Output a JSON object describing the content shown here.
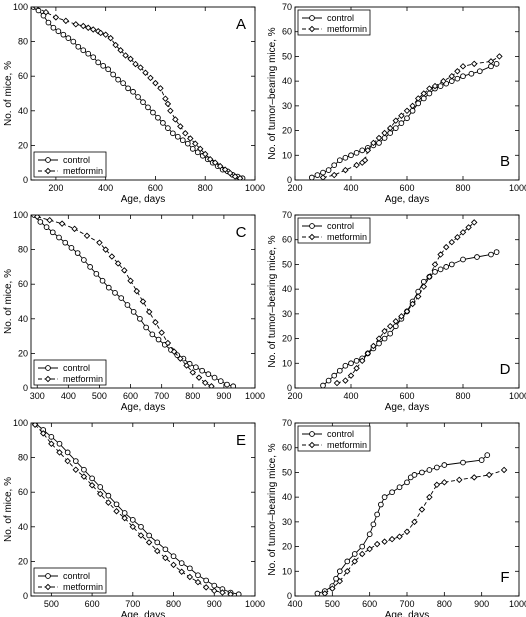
{
  "chart_data": [
    {
      "type": "line",
      "panel_label": "A",
      "xlabel": "Age, days",
      "ylabel": "No. of mice, %",
      "xlim": [
        100,
        1000
      ],
      "ylim": [
        0,
        100
      ],
      "xticks": [
        200,
        400,
        600,
        800,
        1000
      ],
      "yticks": [
        0,
        20,
        40,
        60,
        80,
        100
      ],
      "legend_position": "bottom-left",
      "series": [
        {
          "name": "control",
          "style": "solid",
          "marker": "circle",
          "x": [
            110,
            130,
            150,
            170,
            190,
            210,
            230,
            250,
            270,
            290,
            310,
            330,
            350,
            370,
            390,
            410,
            430,
            450,
            470,
            490,
            510,
            530,
            550,
            570,
            590,
            610,
            630,
            650,
            670,
            690,
            710,
            730,
            750,
            770,
            790,
            810,
            830,
            850,
            870,
            890,
            910,
            930,
            950
          ],
          "y": [
            100,
            98,
            95,
            91,
            88,
            86,
            84,
            82,
            80,
            77,
            75,
            73,
            71,
            68,
            66,
            64,
            61,
            58,
            56,
            53,
            51,
            48,
            45,
            42,
            39,
            36,
            33,
            30,
            27,
            25,
            23,
            21,
            18,
            16,
            14,
            12,
            10,
            8,
            6,
            5,
            3,
            2,
            1
          ]
        },
        {
          "name": "metformin",
          "style": "dashed",
          "marker": "diamond",
          "x": [
            120,
            160,
            200,
            240,
            280,
            310,
            330,
            350,
            370,
            380,
            400,
            420,
            440,
            460,
            480,
            500,
            520,
            540,
            560,
            580,
            600,
            620,
            640,
            650,
            660,
            680,
            700,
            720,
            740,
            760,
            780,
            800,
            820,
            840,
            860,
            880,
            900,
            920,
            940
          ],
          "y": [
            100,
            97,
            94,
            92,
            90,
            89,
            88,
            87,
            86,
            85,
            84,
            82,
            78,
            75,
            72,
            70,
            67,
            65,
            62,
            59,
            56,
            53,
            47,
            44,
            40,
            35,
            31,
            27,
            24,
            21,
            18,
            15,
            12,
            10,
            8,
            6,
            4,
            2,
            1
          ]
        }
      ]
    },
    {
      "type": "line",
      "panel_label": "B",
      "xlabel": "Age, days",
      "ylabel": "No. of tumor–bearing mice, %",
      "xlim": [
        200,
        1000
      ],
      "ylim": [
        0,
        70
      ],
      "xticks": [
        200,
        400,
        600,
        800,
        1000
      ],
      "yticks": [
        0,
        10,
        20,
        30,
        40,
        50,
        60,
        70
      ],
      "legend_position": "top-left",
      "series": [
        {
          "name": "control",
          "style": "solid",
          "marker": "circle",
          "x": [
            260,
            280,
            300,
            320,
            340,
            360,
            380,
            400,
            420,
            440,
            460,
            480,
            500,
            520,
            540,
            560,
            580,
            600,
            620,
            640,
            660,
            680,
            700,
            720,
            740,
            760,
            780,
            800,
            830,
            860,
            900,
            920
          ],
          "y": [
            1,
            2,
            3,
            4,
            6,
            8,
            9,
            10,
            11,
            12,
            13,
            14,
            15,
            17,
            19,
            21,
            23,
            25,
            28,
            31,
            33,
            35,
            37,
            38,
            39,
            40,
            41,
            42,
            43,
            44,
            46,
            47
          ]
        },
        {
          "name": "metformin",
          "style": "dashed",
          "marker": "diamond",
          "x": [
            300,
            340,
            380,
            420,
            440,
            450,
            460,
            480,
            500,
            520,
            540,
            560,
            580,
            600,
            620,
            640,
            660,
            680,
            700,
            730,
            760,
            780,
            800,
            840,
            900,
            930
          ],
          "y": [
            1,
            2,
            4,
            6,
            7,
            8,
            12,
            15,
            17,
            19,
            21,
            24,
            26,
            28,
            30,
            33,
            35,
            37,
            38,
            40,
            42,
            44,
            46,
            47,
            48,
            50
          ]
        }
      ]
    },
    {
      "type": "line",
      "panel_label": "C",
      "xlabel": "Age, days",
      "ylabel": "No. of mice, %",
      "xlim": [
        280,
        1000
      ],
      "ylim": [
        0,
        100
      ],
      "xticks": [
        300,
        400,
        500,
        600,
        700,
        800,
        900,
        1000
      ],
      "yticks": [
        0,
        20,
        40,
        60,
        80,
        100
      ],
      "legend_position": "bottom-left",
      "series": [
        {
          "name": "control",
          "style": "solid",
          "marker": "circle",
          "x": [
            290,
            310,
            330,
            350,
            370,
            390,
            410,
            430,
            450,
            470,
            490,
            510,
            530,
            550,
            570,
            590,
            610,
            630,
            650,
            670,
            690,
            710,
            730,
            750,
            770,
            790,
            810,
            830,
            850,
            870,
            890,
            910,
            930
          ],
          "y": [
            100,
            96,
            93,
            90,
            87,
            84,
            81,
            78,
            74,
            70,
            66,
            62,
            58,
            55,
            52,
            48,
            44,
            40,
            35,
            31,
            28,
            25,
            22,
            19,
            17,
            14,
            12,
            10,
            8,
            6,
            4,
            2,
            1
          ]
        },
        {
          "name": "metformin",
          "style": "dashed",
          "marker": "diamond",
          "x": [
            300,
            340,
            380,
            420,
            460,
            500,
            520,
            540,
            560,
            580,
            600,
            620,
            640,
            660,
            680,
            700,
            720,
            740,
            760,
            780,
            800,
            820,
            840,
            860
          ],
          "y": [
            99,
            97,
            95,
            92,
            88,
            84,
            80,
            76,
            72,
            68,
            62,
            56,
            50,
            44,
            38,
            32,
            26,
            21,
            17,
            13,
            9,
            6,
            3,
            1
          ]
        }
      ]
    },
    {
      "type": "line",
      "panel_label": "D",
      "xlabel": "Age, days",
      "ylabel": "No. of tumor–bearing mice, %",
      "xlim": [
        200,
        1000
      ],
      "ylim": [
        0,
        70
      ],
      "xticks": [
        200,
        400,
        600,
        800,
        1000
      ],
      "yticks": [
        0,
        10,
        20,
        30,
        40,
        50,
        60,
        70
      ],
      "legend_position": "top-left",
      "series": [
        {
          "name": "control",
          "style": "solid",
          "marker": "circle",
          "x": [
            300,
            320,
            340,
            360,
            380,
            400,
            420,
            440,
            460,
            480,
            500,
            520,
            540,
            560,
            580,
            600,
            620,
            640,
            660,
            680,
            700,
            720,
            740,
            760,
            800,
            850,
            900,
            920
          ],
          "y": [
            1,
            3,
            5,
            7,
            9,
            10,
            11,
            12,
            14,
            16,
            18,
            20,
            22,
            25,
            28,
            31,
            35,
            39,
            43,
            45,
            47,
            48,
            49,
            50,
            52,
            53,
            54,
            55
          ]
        },
        {
          "name": "metformin",
          "style": "dashed",
          "marker": "diamond",
          "x": [
            350,
            380,
            400,
            420,
            440,
            460,
            480,
            500,
            520,
            540,
            560,
            580,
            600,
            620,
            640,
            660,
            680,
            700,
            720,
            740,
            760,
            780,
            800,
            820,
            840
          ],
          "y": [
            2,
            3,
            5,
            8,
            11,
            14,
            17,
            20,
            23,
            25,
            27,
            29,
            31,
            34,
            37,
            41,
            45,
            50,
            54,
            57,
            59,
            61,
            63,
            65,
            67
          ]
        }
      ]
    },
    {
      "type": "line",
      "panel_label": "E",
      "xlabel": "Age, days",
      "ylabel": "No. of mice, %",
      "xlim": [
        450,
        1000
      ],
      "ylim": [
        0,
        100
      ],
      "xticks": [
        500,
        600,
        700,
        800,
        900,
        1000
      ],
      "yticks": [
        0,
        20,
        40,
        60,
        80,
        100
      ],
      "legend_position": "bottom-left",
      "series": [
        {
          "name": "control",
          "style": "solid",
          "marker": "circle",
          "x": [
            460,
            480,
            500,
            520,
            540,
            560,
            580,
            600,
            620,
            640,
            660,
            680,
            700,
            720,
            740,
            760,
            780,
            800,
            820,
            840,
            860,
            880,
            900,
            920,
            940,
            960
          ],
          "y": [
            100,
            96,
            92,
            88,
            83,
            78,
            73,
            68,
            63,
            58,
            53,
            48,
            44,
            40,
            35,
            31,
            27,
            23,
            19,
            16,
            12,
            9,
            6,
            4,
            2,
            1
          ]
        },
        {
          "name": "metformin",
          "style": "dashed",
          "marker": "diamond",
          "x": [
            460,
            480,
            500,
            520,
            540,
            560,
            580,
            600,
            620,
            640,
            660,
            680,
            700,
            720,
            740,
            760,
            780,
            800,
            820,
            840,
            860,
            880,
            900,
            920,
            940
          ],
          "y": [
            99,
            94,
            88,
            83,
            78,
            73,
            69,
            64,
            59,
            54,
            49,
            45,
            40,
            35,
            31,
            26,
            22,
            18,
            14,
            11,
            8,
            5,
            3,
            2,
            1
          ]
        }
      ]
    },
    {
      "type": "line",
      "panel_label": "F",
      "xlabel": "Age, days",
      "ylabel": "No. of tumor–bearing mice, %",
      "xlim": [
        400,
        1000
      ],
      "ylim": [
        0,
        70
      ],
      "xticks": [
        400,
        500,
        600,
        700,
        800,
        900,
        1000
      ],
      "yticks": [
        0,
        10,
        20,
        30,
        40,
        50,
        60,
        70
      ],
      "legend_position": "top-left",
      "series": [
        {
          "name": "control",
          "style": "solid",
          "marker": "circle",
          "x": [
            460,
            480,
            500,
            510,
            520,
            540,
            560,
            580,
            600,
            610,
            620,
            630,
            640,
            660,
            680,
            700,
            710,
            720,
            740,
            760,
            780,
            800,
            850,
            900,
            915
          ],
          "y": [
            1,
            2,
            4,
            7,
            10,
            14,
            17,
            20,
            25,
            29,
            33,
            37,
            40,
            42,
            44,
            46,
            48,
            49,
            50,
            51,
            52,
            53,
            54,
            55,
            57
          ]
        },
        {
          "name": "metformin",
          "style": "dashed",
          "marker": "diamond",
          "x": [
            480,
            500,
            520,
            540,
            560,
            580,
            600,
            620,
            640,
            660,
            680,
            700,
            720,
            740,
            760,
            780,
            800,
            840,
            880,
            920,
            960
          ],
          "y": [
            1,
            3,
            6,
            10,
            14,
            17,
            19,
            21,
            22,
            23,
            24,
            26,
            30,
            35,
            40,
            45,
            46,
            47,
            48,
            49,
            51
          ]
        }
      ]
    }
  ]
}
